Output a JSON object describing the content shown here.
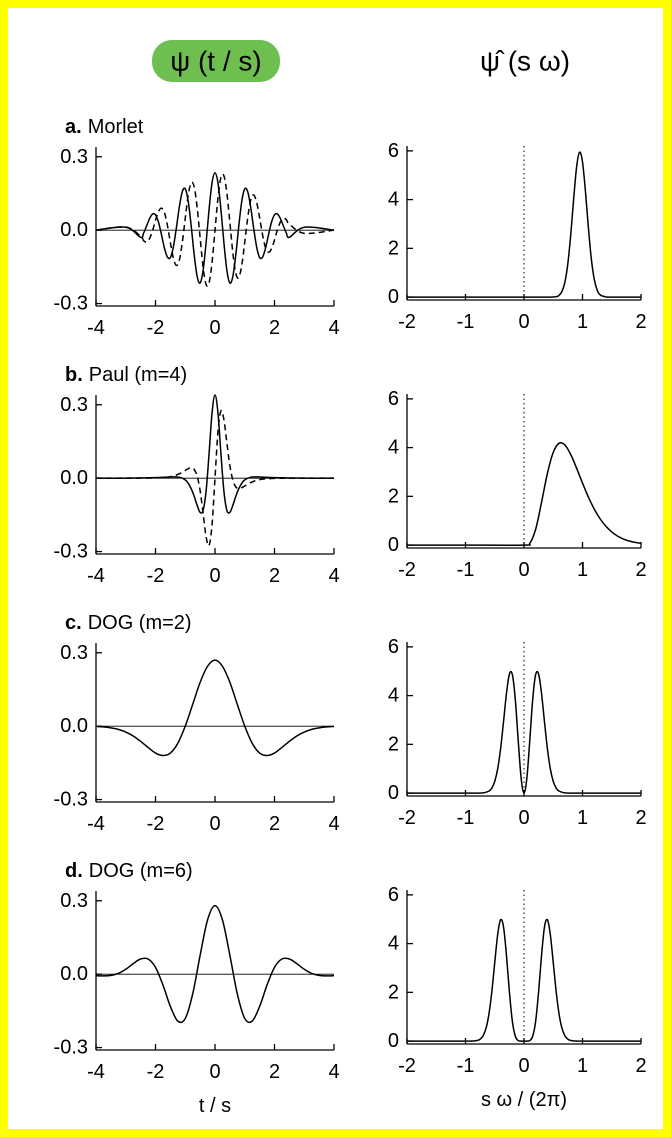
{
  "chart_data": [
    {
      "type": "line",
      "title": "ψ (t / s)",
      "label_letter": "a.",
      "label_text": "Morlet",
      "zero_line": "y",
      "x": [
        -4,
        -3,
        -2.5,
        -2.4,
        -2.3,
        -2.2,
        -2.1,
        -2,
        -1.9,
        -1.8,
        -1.7,
        -1.6,
        -1.5,
        -1.4,
        -1.3,
        -1.2,
        -1.1,
        -1,
        -0.9,
        -0.8,
        -0.7,
        -0.6,
        -0.5,
        -0.4,
        -0.3,
        -0.2,
        -0.1,
        0,
        0.1,
        0.2,
        0.3,
        0.4,
        0.5,
        0.6,
        0.7,
        0.8,
        0.9,
        1,
        1.1,
        1.2,
        1.3,
        1.4,
        1.5,
        1.6,
        1.7,
        1.8,
        1.9,
        2,
        2.1,
        2.2,
        2.3,
        2.4,
        2.5,
        3,
        4
      ],
      "series": [
        {
          "color": "#000000",
          "dash": "solid",
          "values": [
            0,
            0.012,
            -0.029,
            -0.012,
            0.017,
            0.047,
            0.066,
            0.063,
            0.033,
            -0.018,
            -0.073,
            -0.11,
            -0.112,
            -0.069,
            0.008,
            0.094,
            0.157,
            0.169,
            0.118,
            0.017,
            -0.1,
            -0.189,
            -0.216,
            -0.165,
            -0.052,
            0.084,
            0.193,
            0.234,
            0.193,
            0.084,
            -0.052,
            -0.165,
            -0.216,
            -0.189,
            -0.1,
            0.017,
            0.118,
            0.169,
            0.157,
            0.094,
            0.008,
            -0.069,
            -0.112,
            -0.11,
            -0.073,
            -0.018,
            0.033,
            0.063,
            0.066,
            0.047,
            0.017,
            -0.012,
            -0.029,
            0.012,
            0
          ]
        },
        {
          "color": "#000000",
          "dash": "dashed",
          "values": [
            0,
            0.013,
            -0.025,
            -0.043,
            -0.048,
            -0.034,
            -0.002,
            0.04,
            0.076,
            0.09,
            0.072,
            0.02,
            -0.051,
            -0.114,
            -0.144,
            -0.123,
            -0.051,
            0.049,
            0.143,
            0.194,
            0.177,
            0.093,
            -0.031,
            -0.151,
            -0.222,
            -0.216,
            -0.132,
            0,
            0.132,
            0.216,
            0.222,
            0.151,
            0.031,
            -0.093,
            -0.177,
            -0.194,
            -0.143,
            -0.049,
            0.051,
            0.123,
            0.144,
            0.114,
            0.051,
            -0.02,
            -0.072,
            -0.09,
            -0.076,
            -0.04,
            0.002,
            0.034,
            0.048,
            0.043,
            0.025,
            -0.013,
            0
          ]
        }
      ],
      "xlim": [
        -4,
        4
      ],
      "xticks": [
        -4,
        -2,
        0,
        2,
        4
      ],
      "ylim": [
        -0.31,
        0.34
      ],
      "yticks": [
        0.3,
        {
          "value": 0,
          "label": "0.0"
        },
        -0.3
      ]
    },
    {
      "type": "line",
      "title": "ψ̂ (s ω)",
      "zero_line": "x",
      "x": [
        -2,
        -1,
        0,
        0.5,
        0.6,
        0.65,
        0.7,
        0.75,
        0.8,
        0.85,
        0.9,
        0.95,
        1,
        1.05,
        1.1,
        1.15,
        1.2,
        1.25,
        1.3,
        1.4,
        1.5,
        2
      ],
      "series": [
        {
          "color": "#000000",
          "dash": "solid",
          "values": [
            0,
            0,
            0,
            0.005,
            0.075,
            0.235,
            0.622,
            1.383,
            2.584,
            4.058,
            5.357,
            5.945,
            5.546,
            4.348,
            2.868,
            1.589,
            0.74,
            0.29,
            0.095,
            0.006,
            0,
            0
          ]
        }
      ],
      "xlim": [
        -2,
        2
      ],
      "xticks": [
        -2,
        -1,
        0,
        1,
        2
      ],
      "ylim": [
        -0.12,
        6.2
      ],
      "yticks": [
        0,
        2,
        4,
        6
      ]
    },
    {
      "type": "line",
      "label_letter": "b.",
      "label_text": "Paul (m=4)",
      "zero_line": "y",
      "x": [
        -4,
        -3,
        -2,
        -1.5,
        -1.2,
        -1,
        -0.9,
        -0.8,
        -0.7,
        -0.6,
        -0.5,
        -0.4,
        -0.3,
        -0.2,
        -0.1,
        0,
        0.1,
        0.2,
        0.3,
        0.4,
        0.5,
        0.6,
        0.7,
        0.8,
        0.9,
        1,
        1.2,
        1.5,
        2,
        3,
        4
      ],
      "series": [
        {
          "color": "#000000",
          "dash": "solid",
          "values": [
            0,
            0,
            0.002,
            0.005,
            0.004,
            -0.007,
            -0.021,
            -0.043,
            -0.074,
            -0.111,
            -0.14,
            -0.132,
            -0.054,
            0.099,
            0.266,
            0.34,
            0.266,
            0.099,
            -0.054,
            -0.132,
            -0.14,
            -0.111,
            -0.074,
            -0.043,
            -0.021,
            -0.007,
            0.004,
            0.005,
            0.002,
            0,
            0
          ]
        },
        {
          "color": "#000000",
          "dash": "dashed",
          "values": [
            0,
            0,
            0.001,
            0.006,
            0.018,
            0.032,
            0.039,
            0.043,
            0.036,
            0.008,
            -0.051,
            -0.143,
            -0.239,
            -0.275,
            -0.191,
            0,
            0.191,
            0.275,
            0.239,
            0.143,
            0.051,
            -0.008,
            -0.036,
            -0.043,
            -0.039,
            -0.032,
            -0.018,
            -0.006,
            -0.001,
            0,
            0
          ]
        }
      ],
      "xlim": [
        -4,
        4
      ],
      "xticks": [
        -4,
        -2,
        0,
        2,
        4
      ],
      "ylim": [
        -0.31,
        0.34
      ],
      "yticks": [
        0.3,
        {
          "value": 0,
          "label": "0.0"
        },
        -0.3
      ]
    },
    {
      "type": "line",
      "zero_line": "x",
      "x": [
        -2,
        -1,
        0,
        0.1,
        0.2,
        0.3,
        0.4,
        0.5,
        0.6,
        0.7,
        0.8,
        0.9,
        1,
        1.1,
        1.2,
        1.3,
        1.4,
        1.5,
        1.6,
        1.7,
        1.8,
        1.9,
        2
      ],
      "series": [
        {
          "color": "#000000",
          "dash": "solid",
          "values": [
            0,
            0,
            0,
            0.077,
            0.654,
            1.755,
            2.939,
            3.803,
            4.181,
            4.105,
            3.712,
            3.151,
            2.544,
            1.975,
            1.482,
            1.081,
            0.771,
            0.539,
            0.369,
            0.249,
            0.166,
            0.109,
            0.071
          ]
        }
      ],
      "xlim": [
        -2,
        2
      ],
      "xticks": [
        -2,
        -1,
        0,
        1,
        2
      ],
      "ylim": [
        -0.12,
        6.2
      ],
      "yticks": [
        0,
        2,
        4,
        6
      ]
    },
    {
      "type": "line",
      "label_letter": "c.",
      "label_text": "DOG (m=2)",
      "zero_line": "y",
      "x": [
        -4,
        -3.75,
        -3.5,
        -3.25,
        -3,
        -2.75,
        -2.5,
        -2.25,
        -2,
        -1.75,
        -1.5,
        -1.25,
        -1,
        -0.75,
        -0.5,
        -0.25,
        0,
        0.25,
        0.5,
        0.75,
        1,
        1.25,
        1.5,
        1.75,
        2,
        2.25,
        2.5,
        2.75,
        3,
        3.25,
        3.5,
        3.75,
        4
      ],
      "series": [
        {
          "color": "#000000",
          "dash": "solid",
          "values": [
            -0.001,
            -0.003,
            -0.007,
            -0.013,
            -0.024,
            -0.04,
            -0.062,
            -0.087,
            -0.11,
            -0.12,
            -0.11,
            -0.07,
            0,
            0.089,
            0.179,
            0.245,
            0.27,
            0.245,
            0.179,
            0.089,
            0,
            -0.07,
            -0.11,
            -0.12,
            -0.11,
            -0.087,
            -0.062,
            -0.04,
            -0.024,
            -0.013,
            -0.007,
            -0.003,
            -0.001
          ]
        }
      ],
      "xlim": [
        -4,
        4
      ],
      "xticks": [
        -4,
        -2,
        0,
        2,
        4
      ],
      "ylim": [
        -0.31,
        0.34
      ],
      "yticks": [
        0.3,
        {
          "value": 0,
          "label": "0.0"
        },
        -0.3
      ]
    },
    {
      "type": "line",
      "zero_line": "x",
      "x": [
        -2,
        -1,
        -0.8,
        -0.7,
        -0.6,
        -0.55,
        -0.5,
        -0.45,
        -0.4,
        -0.35,
        -0.3,
        -0.25,
        -0.2,
        -0.15,
        -0.1,
        -0.05,
        0,
        0.05,
        0.1,
        0.15,
        0.2,
        0.25,
        0.3,
        0.35,
        0.4,
        0.45,
        0.5,
        0.55,
        0.6,
        0.7,
        0.8,
        1,
        2
      ],
      "series": [
        {
          "color": "#000000",
          "dash": "solid",
          "values": [
            0,
            0,
            0,
            0.008,
            0.079,
            0.206,
            0.481,
            0.996,
            1.822,
            2.926,
            4.084,
            4.882,
            4.873,
            3.873,
            2.203,
            0.639,
            0,
            0.639,
            2.203,
            3.873,
            4.873,
            4.882,
            4.084,
            2.926,
            1.822,
            0.996,
            0.481,
            0.206,
            0.079,
            0.008,
            0,
            0,
            0
          ]
        }
      ],
      "xlim": [
        -2,
        2
      ],
      "xticks": [
        -2,
        -1,
        0,
        1,
        2
      ],
      "ylim": [
        -0.12,
        6.2
      ],
      "yticks": [
        0,
        2,
        4,
        6
      ]
    },
    {
      "type": "line",
      "label_letter": "d.",
      "label_text": "DOG (m=6)",
      "zero_line": "y",
      "xlabel": "t / s",
      "x": [
        -4,
        -3.75,
        -3.5,
        -3.25,
        -3,
        -2.75,
        -2.5,
        -2.25,
        -2,
        -1.75,
        -1.5,
        -1.25,
        -1,
        -0.75,
        -0.5,
        -0.25,
        0,
        0.25,
        0.5,
        0.75,
        1,
        1.25,
        1.5,
        1.75,
        2,
        2.25,
        2.5,
        2.75,
        3,
        3.25,
        3.5,
        3.75,
        4
      ],
      "series": [
        {
          "color": "#000000",
          "dash": "solid",
          "values": [
            -0.006,
            -0.007,
            -0.005,
            0.003,
            0.02,
            0.043,
            0.062,
            0.062,
            0.028,
            -0.044,
            -0.132,
            -0.192,
            -0.181,
            -0.081,
            0.077,
            0.222,
            0.28,
            0.222,
            0.077,
            -0.081,
            -0.181,
            -0.192,
            -0.132,
            -0.044,
            0.028,
            0.062,
            0.062,
            0.043,
            0.02,
            0.003,
            -0.005,
            -0.007,
            -0.006
          ]
        }
      ],
      "xlim": [
        -4,
        4
      ],
      "xticks": [
        -4,
        -2,
        0,
        2,
        4
      ],
      "ylim": [
        -0.31,
        0.34
      ],
      "yticks": [
        0.3,
        {
          "value": 0,
          "label": "0.0"
        },
        -0.3
      ]
    },
    {
      "type": "line",
      "zero_line": "x",
      "xlabel": "s ω / (2π)",
      "x": [
        -2,
        -1,
        -0.9,
        -0.8,
        -0.75,
        -0.7,
        -0.65,
        -0.6,
        -0.55,
        -0.5,
        -0.45,
        -0.4,
        -0.35,
        -0.3,
        -0.25,
        -0.2,
        -0.15,
        -0.1,
        -0.05,
        0,
        0.05,
        0.1,
        0.15,
        0.2,
        0.25,
        0.3,
        0.35,
        0.4,
        0.45,
        0.5,
        0.55,
        0.6,
        0.65,
        0.7,
        0.75,
        0.8,
        0.9,
        1,
        2
      ],
      "series": [
        {
          "color": "#000000",
          "dash": "solid",
          "values": [
            0,
            0,
            0.001,
            0.025,
            0.077,
            0.213,
            0.517,
            1.099,
            2.026,
            3.22,
            4.367,
            4.98,
            4.683,
            3.526,
            2.031,
            0.83,
            0.209,
            0.023,
            0,
            0,
            0,
            0.023,
            0.209,
            0.83,
            2.031,
            3.526,
            4.683,
            4.98,
            4.367,
            3.22,
            2.026,
            1.099,
            0.517,
            0.213,
            0.077,
            0.025,
            0.001,
            0,
            0
          ]
        }
      ],
      "xlim": [
        -2,
        2
      ],
      "xticks": [
        -2,
        -1,
        0,
        1,
        2
      ],
      "ylim": [
        -0.12,
        6.2
      ],
      "yticks": [
        0,
        2,
        4,
        6
      ]
    }
  ]
}
